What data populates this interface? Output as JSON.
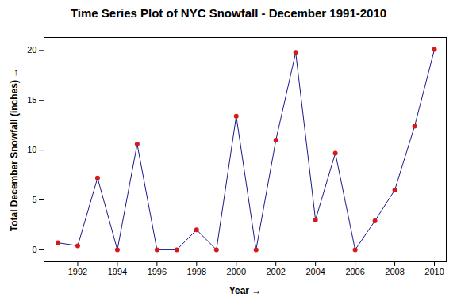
{
  "chart_data": {
    "type": "line",
    "title": "Time Series Plot of NYC Snowfall - December 1991-2010",
    "x_label": "Year",
    "y_label": "Total December Snowfall (inches)",
    "x": [
      1991,
      1992,
      1993,
      1994,
      1995,
      1996,
      1997,
      1998,
      1999,
      2000,
      2001,
      2002,
      2003,
      2004,
      2005,
      2006,
      2007,
      2008,
      2009,
      2010
    ],
    "values": [
      0.7,
      0.4,
      7.2,
      0,
      10.6,
      0,
      0,
      2.0,
      0,
      13.4,
      0,
      11.0,
      19.8,
      3.0,
      9.7,
      0,
      2.9,
      6.0,
      12.4,
      20.1
    ],
    "color": "#1a1a8c",
    "marker": "circle",
    "xlim": [
      1990.3,
      2010.6
    ],
    "xticks": [
      1992,
      1994,
      1996,
      1998,
      2000,
      2002,
      2004,
      2006,
      2008,
      2010
    ],
    "ylim": [
      -1.2,
      21.3
    ],
    "yticks": [
      0,
      5,
      10,
      15,
      20
    ],
    "grid": false
  }
}
